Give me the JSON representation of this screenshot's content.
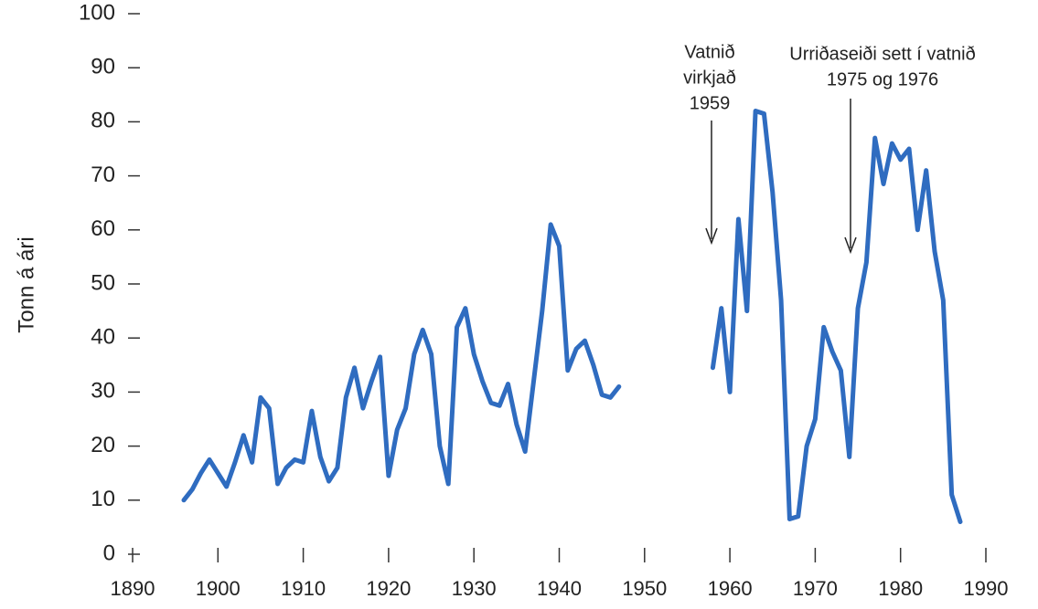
{
  "chart_data": {
    "type": "line",
    "y_label": "Tonn á ári",
    "annotations": [
      {
        "lines": [
          "Vatnið",
          "virkjað",
          "1959"
        ]
      },
      {
        "lines": [
          "Urriðaseiði sett í vatnið",
          "1975 og 1976"
        ]
      }
    ],
    "color": "#2f6cc0",
    "x": [
      1896,
      1897,
      1898,
      1899,
      1900,
      1901,
      1902,
      1903,
      1904,
      1905,
      1906,
      1907,
      1908,
      1909,
      1910,
      1911,
      1912,
      1913,
      1914,
      1915,
      1916,
      1917,
      1918,
      1919,
      1920,
      1921,
      1922,
      1923,
      1924,
      1925,
      1926,
      1927,
      1928,
      1929,
      1930,
      1931,
      1932,
      1933,
      1934,
      1935,
      1936,
      1937,
      1938,
      1939,
      1940,
      1941,
      1942,
      1943,
      1944,
      1945,
      1946,
      1947,
      1948,
      1949,
      1950,
      1951,
      1952,
      1953,
      1954,
      1955,
      1956,
      1957,
      1958,
      1959,
      1960,
      1961,
      1962,
      1963,
      1964,
      1965,
      1966,
      1967,
      1968,
      1969,
      1970,
      1971,
      1972,
      1973,
      1974,
      1975,
      1976,
      1977,
      1978,
      1979,
      1980,
      1981,
      1982,
      1983,
      1984,
      1985,
      1986,
      1987
    ],
    "values": [
      10,
      12,
      15,
      17.5,
      15,
      12.5,
      17,
      22,
      17,
      29,
      27,
      13,
      16,
      17.5,
      17,
      26.5,
      18,
      13.5,
      16,
      29,
      34.5,
      27,
      32,
      36.5,
      14.5,
      23,
      27,
      37,
      41.5,
      37,
      20,
      13,
      42,
      45.5,
      37,
      32,
      28,
      27.5,
      31.5,
      24,
      19,
      32,
      45,
      61,
      57,
      34,
      38,
      39.5,
      35,
      29.5,
      29,
      31,
      null,
      null,
      null,
      null,
      null,
      null,
      null,
      null,
      null,
      null,
      34.5,
      45.5,
      30,
      62,
      45,
      82,
      81.5,
      67,
      47,
      6.5,
      7,
      20,
      25,
      42,
      37.5,
      34,
      18,
      45.5,
      54,
      77,
      68.5,
      76,
      73,
      75,
      60,
      71,
      56,
      47,
      11,
      6
    ],
    "xlim": [
      1890,
      1990
    ],
    "xticks": [
      1890,
      1900,
      1910,
      1920,
      1930,
      1940,
      1950,
      1960,
      1970,
      1980,
      1990
    ],
    "ylim": [
      0,
      100
    ],
    "yticks": [
      0,
      10,
      20,
      30,
      40,
      50,
      60,
      70,
      80,
      90,
      100
    ],
    "grid": false
  }
}
